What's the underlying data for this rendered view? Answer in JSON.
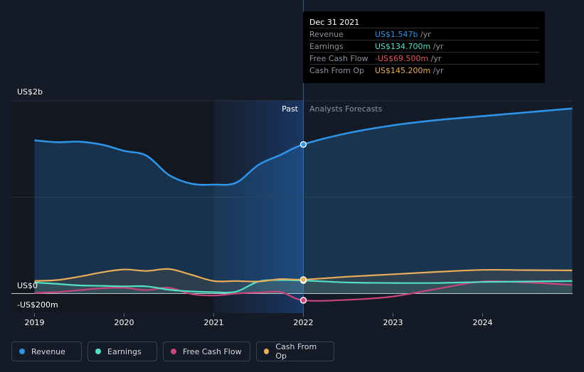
{
  "colors": {
    "revenue": "#2e93e6",
    "earnings": "#53dfc4",
    "free_cash_flow": "#c8447a",
    "cash_from_op": "#e8ad59",
    "fcf_negative": "#e05656"
  },
  "tooltip": {
    "date": "Dec 31 2021",
    "rows": [
      {
        "label": "Revenue",
        "value": "US$1.547b",
        "unit": "/yr"
      },
      {
        "label": "Earnings",
        "value": "US$134.700m",
        "unit": "/yr"
      },
      {
        "label": "Free Cash Flow",
        "value": "-US$69.500m",
        "unit": "/yr"
      },
      {
        "label": "Cash From Op",
        "value": "US$145.200m",
        "unit": "/yr"
      }
    ]
  },
  "legend": [
    {
      "label": "Revenue",
      "icon": "revenue-dot-icon"
    },
    {
      "label": "Earnings",
      "icon": "earnings-dot-icon"
    },
    {
      "label": "Free Cash Flow",
      "icon": "free-cash-flow-dot-icon"
    },
    {
      "label": "Cash From Op",
      "icon": "cash-from-op-dot-icon"
    }
  ],
  "chart_data": {
    "type": "line",
    "y_tick_labels": [
      "US$2b",
      "US$0",
      "-US$200m"
    ],
    "past_label": "Past",
    "forecast_label": "Analysts Forecasts",
    "x_tick_labels": [
      "2019",
      "2020",
      "2021",
      "2022",
      "2023",
      "2024"
    ],
    "ylim": [
      -200,
      2000
    ],
    "xlim": [
      2019,
      2025
    ],
    "forecast_start": 2022,
    "grid": true,
    "series": [
      {
        "name": "Revenue",
        "key": "revenue",
        "points": [
          [
            2019.0,
            1589
          ],
          [
            2019.25,
            1570
          ],
          [
            2019.5,
            1575
          ],
          [
            2019.75,
            1545
          ],
          [
            2020.0,
            1480
          ],
          [
            2020.25,
            1430
          ],
          [
            2020.5,
            1230
          ],
          [
            2020.75,
            1140
          ],
          [
            2021.0,
            1130
          ],
          [
            2021.25,
            1150
          ],
          [
            2021.5,
            1335
          ],
          [
            2021.75,
            1440
          ],
          [
            2022.0,
            1547
          ],
          [
            2022.5,
            1665
          ],
          [
            2023.0,
            1745
          ],
          [
            2023.5,
            1800
          ],
          [
            2024.0,
            1840
          ],
          [
            2024.5,
            1880
          ],
          [
            2025.0,
            1920
          ]
        ]
      },
      {
        "name": "Earnings",
        "key": "earnings",
        "points": [
          [
            2019.0,
            115
          ],
          [
            2019.25,
            100
          ],
          [
            2019.5,
            85
          ],
          [
            2019.75,
            80
          ],
          [
            2020.0,
            75
          ],
          [
            2020.25,
            75
          ],
          [
            2020.5,
            40
          ],
          [
            2020.75,
            22
          ],
          [
            2021.0,
            15
          ],
          [
            2021.25,
            20
          ],
          [
            2021.5,
            125
          ],
          [
            2021.75,
            140
          ],
          [
            2022.0,
            135
          ],
          [
            2022.5,
            115
          ],
          [
            2023.0,
            110
          ],
          [
            2023.5,
            110
          ],
          [
            2024.0,
            120
          ],
          [
            2024.5,
            125
          ],
          [
            2025.0,
            130
          ]
        ]
      },
      {
        "name": "Free Cash Flow",
        "key": "free_cash_flow",
        "points": [
          [
            2019.0,
            5
          ],
          [
            2019.25,
            15
          ],
          [
            2019.5,
            35
          ],
          [
            2019.75,
            55
          ],
          [
            2020.0,
            60
          ],
          [
            2020.25,
            35
          ],
          [
            2020.5,
            60
          ],
          [
            2020.75,
            -5
          ],
          [
            2021.0,
            -20
          ],
          [
            2021.25,
            0
          ],
          [
            2021.5,
            10
          ],
          [
            2021.75,
            15
          ],
          [
            2022.0,
            -70
          ],
          [
            2022.5,
            -65
          ],
          [
            2023.0,
            -30
          ],
          [
            2023.5,
            50
          ],
          [
            2024.0,
            125
          ],
          [
            2024.5,
            115
          ],
          [
            2025.0,
            90
          ]
        ]
      },
      {
        "name": "Cash From Op",
        "key": "cash_from_op",
        "points": [
          [
            2019.0,
            130
          ],
          [
            2019.25,
            140
          ],
          [
            2019.5,
            175
          ],
          [
            2019.75,
            220
          ],
          [
            2020.0,
            250
          ],
          [
            2020.25,
            235
          ],
          [
            2020.5,
            255
          ],
          [
            2020.75,
            195
          ],
          [
            2021.0,
            130
          ],
          [
            2021.25,
            130
          ],
          [
            2021.5,
            125
          ],
          [
            2021.75,
            150
          ],
          [
            2022.0,
            145
          ],
          [
            2022.5,
            175
          ],
          [
            2023.0,
            200
          ],
          [
            2023.5,
            225
          ],
          [
            2024.0,
            245
          ],
          [
            2024.5,
            243
          ],
          [
            2025.0,
            240
          ]
        ]
      }
    ],
    "highlight_x": 2022
  }
}
